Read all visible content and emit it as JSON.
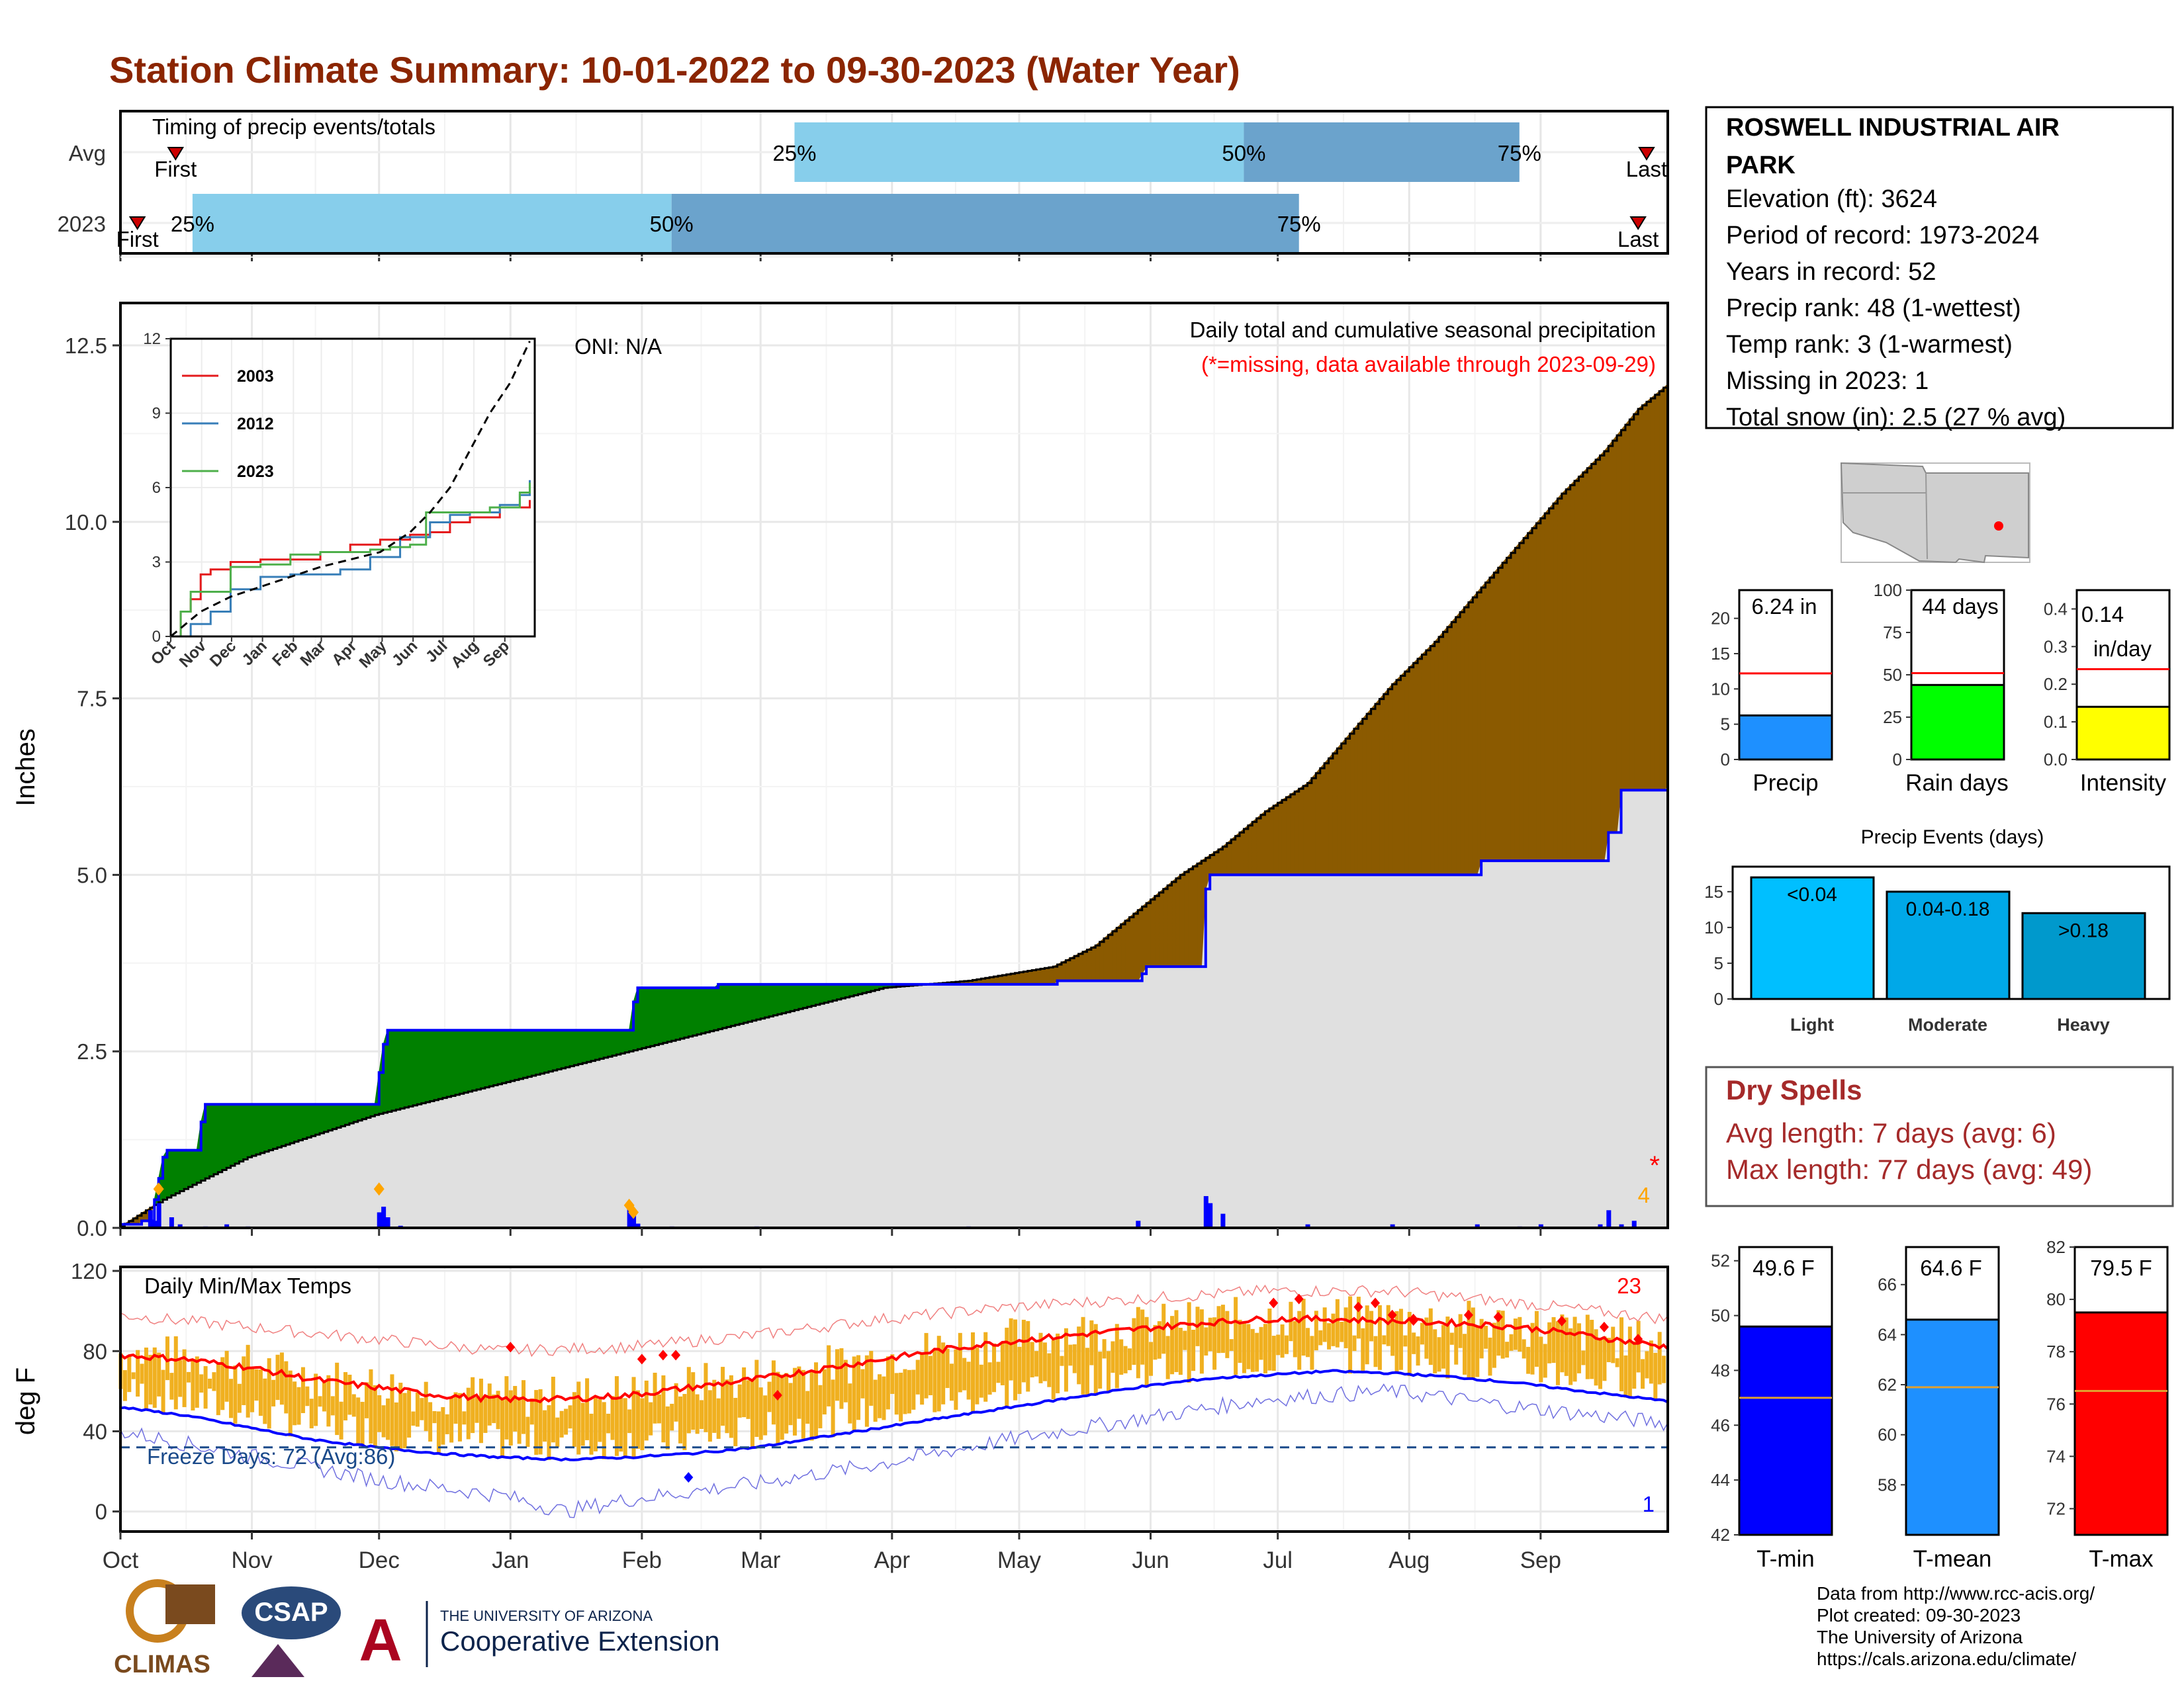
{
  "page_title": "Station Climate Summary: 10-01-2022 to 09-30-2023 (Water Year)",
  "colors": {
    "title": "#8B2500",
    "light_blue": "#87CEEB",
    "mid_blue": "#6BA3CC",
    "green_area": "#008000",
    "brown_area": "#8B5A00",
    "grey_area": "#E0E0E0",
    "dry_spell_red": "#A52A2A",
    "missing_red": "#FF0000",
    "tmax_red": "#FF0000",
    "tmin_blue": "#0000FF",
    "tmean_blue": "#1E90FF",
    "temp_orange": "#F0B020",
    "rain_green": "#00FF00",
    "intensity_yellow": "#FFFF00"
  },
  "timing_panel": {
    "title": "Timing of precip events/totals",
    "rows": [
      "Avg",
      "2023"
    ],
    "avg_labels": {
      "first": "First",
      "last": "Last",
      "p25": "25%",
      "p50": "50%",
      "p75": "75%"
    },
    "yr_labels": {
      "first": "First",
      "last": "Last",
      "p25": "25%",
      "p50": "50%",
      "p75": "75%"
    }
  },
  "precip_panel": {
    "title": "Daily total and cumulative seasonal precipitation",
    "missing_note": "(*=missing, data available through 2023-09-29)",
    "oni": "ONI: N/A",
    "ylabel": "Inches",
    "missing_count": "4",
    "missing_star": "*"
  },
  "months": [
    "Oct",
    "Nov",
    "Dec",
    "Jan",
    "Feb",
    "Mar",
    "Apr",
    "May",
    "Jun",
    "Jul",
    "Aug",
    "Sep"
  ],
  "inset_months": [
    "Oct",
    "Nov",
    "Dec",
    "Jan",
    "Feb",
    "Mar",
    "Apr",
    "May",
    "Jun",
    "Jul",
    "Aug",
    "Sep"
  ],
  "temp_panel": {
    "title": "Daily Min/Max Temps",
    "ylabel": "deg F",
    "freeze": "Freeze Days: 72 (Avg:86)",
    "max_count": "23",
    "min_count": "1"
  },
  "station": {
    "name_line1": "ROSWELL INDUSTRIAL AIR",
    "name_line2": "PARK",
    "elevation": "Elevation (ft): 3624",
    "period": "Period of record: 1973-2024",
    "years": "Years in record: 52",
    "precip_rank": "Precip rank: 48 (1-wettest)",
    "temp_rank": "Temp rank: 3 (1-warmest)",
    "missing": "Missing in 2023: 1",
    "snow": "Total snow (in): 2.5 (27 % avg)"
  },
  "mini_bars": {
    "precip": {
      "label": "Precip",
      "value_text": "6.24 in"
    },
    "rain_days": {
      "label": "Rain days",
      "value_text": "44 days"
    },
    "intensity": {
      "label": "Intensity",
      "value_text_1": "0.14",
      "value_text_2": "in/day"
    }
  },
  "events": {
    "title": "Precip Events (days)",
    "categories": [
      "Light",
      "Moderate",
      "Heavy"
    ],
    "bar_labels": [
      "<0.04",
      "0.04-0.18",
      ">0.18"
    ]
  },
  "dry_spells": {
    "title": "Dry Spells",
    "avg": "Avg length: 7 days (avg: 6)",
    "max": "Max length: 77 days (avg: 49)"
  },
  "temp_bars": {
    "tmin": {
      "label": "T-min",
      "value_text": "49.6 F"
    },
    "tmean": {
      "label": "T-mean",
      "value_text": "64.6 F"
    },
    "tmax": {
      "label": "T-max",
      "value_text": "79.5 F"
    }
  },
  "footer": {
    "line1": "Data from http://www.rcc-acis.org/",
    "line2": "Plot created: 09-30-2023",
    "line3": "The University of Arizona",
    "line4": "https://cals.arizona.edu/climate/"
  },
  "logos": {
    "climas": "CLIMAS",
    "csap": "CSAP",
    "ua_line1": "THE UNIVERSITY OF ARIZONA",
    "ua_line2": "Cooperative Extension"
  },
  "chart_data": [
    {
      "name": "timing",
      "type": "bar",
      "rows": [
        "Avg",
        "2023"
      ],
      "x_domain_days": [
        0,
        365
      ],
      "avg": {
        "first": 13,
        "p25": 159,
        "p50": 265,
        "p75": 330,
        "last": 360
      },
      "y2023": {
        "first": 4,
        "p25": 17,
        "p50": 130,
        "p75": 278,
        "last": 358
      }
    },
    {
      "name": "cumulative_precip",
      "type": "area",
      "ylim": [
        0,
        13.1
      ],
      "yticks": [
        0.0,
        2.5,
        5.0,
        7.5,
        10.0,
        12.5
      ],
      "observed_2023": [
        [
          0,
          0.05
        ],
        [
          5,
          0.1
        ],
        [
          8,
          0.4
        ],
        [
          9,
          0.7
        ],
        [
          10,
          1.0
        ],
        [
          11,
          1.1
        ],
        [
          18,
          1.1
        ],
        [
          19,
          1.5
        ],
        [
          20,
          1.75
        ],
        [
          60,
          1.75
        ],
        [
          61,
          2.2
        ],
        [
          62,
          2.6
        ],
        [
          63,
          2.8
        ],
        [
          120,
          2.8
        ],
        [
          121,
          3.2
        ],
        [
          122,
          3.4
        ],
        [
          140,
          3.4
        ],
        [
          141,
          3.45
        ],
        [
          220,
          3.45
        ],
        [
          221,
          3.5
        ],
        [
          240,
          3.5
        ],
        [
          241,
          3.6
        ],
        [
          242,
          3.7
        ],
        [
          255,
          3.7
        ],
        [
          256,
          4.8
        ],
        [
          257,
          5.0
        ],
        [
          320,
          5.0
        ],
        [
          321,
          5.2
        ],
        [
          350,
          5.2
        ],
        [
          351,
          5.6
        ],
        [
          354,
          6.2
        ],
        [
          365,
          6.25
        ]
      ],
      "average": [
        [
          0,
          0.02
        ],
        [
          10,
          0.4
        ],
        [
          20,
          0.7
        ],
        [
          30,
          1.0
        ],
        [
          40,
          1.2
        ],
        [
          50,
          1.4
        ],
        [
          60,
          1.6
        ],
        [
          80,
          1.9
        ],
        [
          100,
          2.2
        ],
        [
          120,
          2.5
        ],
        [
          140,
          2.8
        ],
        [
          160,
          3.1
        ],
        [
          180,
          3.4
        ],
        [
          200,
          3.5
        ],
        [
          210,
          3.6
        ],
        [
          220,
          3.7
        ],
        [
          230,
          4.0
        ],
        [
          240,
          4.5
        ],
        [
          250,
          5.0
        ],
        [
          260,
          5.4
        ],
        [
          270,
          5.9
        ],
        [
          280,
          6.3
        ],
        [
          290,
          7.0
        ],
        [
          300,
          7.7
        ],
        [
          310,
          8.3
        ],
        [
          320,
          9.0
        ],
        [
          330,
          9.7
        ],
        [
          340,
          10.4
        ],
        [
          350,
          11.0
        ],
        [
          358,
          11.6
        ],
        [
          365,
          11.95
        ]
      ],
      "daily_totals": [
        [
          7,
          0.25
        ],
        [
          8,
          0.1
        ],
        [
          9,
          0.35
        ],
        [
          12,
          0.15
        ],
        [
          14,
          0.05
        ],
        [
          20,
          0.02
        ],
        [
          25,
          0.05
        ],
        [
          30,
          0.02
        ],
        [
          61,
          0.22
        ],
        [
          62,
          0.3
        ],
        [
          63,
          0.15
        ],
        [
          66,
          0.03
        ],
        [
          120,
          0.28
        ],
        [
          121,
          0.2
        ],
        [
          122,
          0.06
        ],
        [
          130,
          0.02
        ],
        [
          150,
          0.02
        ],
        [
          200,
          0.02
        ],
        [
          240,
          0.1
        ],
        [
          256,
          0.45
        ],
        [
          257,
          0.35
        ],
        [
          260,
          0.2
        ],
        [
          280,
          0.05
        ],
        [
          300,
          0.05
        ],
        [
          320,
          0.05
        ],
        [
          330,
          0.02
        ],
        [
          335,
          0.05
        ],
        [
          349,
          0.05
        ],
        [
          351,
          0.25
        ],
        [
          354,
          0.05
        ],
        [
          357,
          0.1
        ]
      ],
      "missing_days": [
        364
      ]
    },
    {
      "name": "inset_cumulative",
      "type": "line",
      "ylim": [
        0,
        12
      ],
      "yticks": [
        0,
        3,
        6,
        9,
        12
      ],
      "series": [
        {
          "name": "2003",
          "points": [
            [
              0,
              0
            ],
            [
              10,
              1.0
            ],
            [
              20,
              1.5
            ],
            [
              30,
              2.5
            ],
            [
              40,
              2.7
            ],
            [
              60,
              3.0
            ],
            [
              90,
              3.1
            ],
            [
              150,
              3.4
            ],
            [
              180,
              3.7
            ],
            [
              210,
              3.9
            ],
            [
              240,
              4.1
            ],
            [
              260,
              4.2
            ],
            [
              280,
              4.6
            ],
            [
              300,
              4.8
            ],
            [
              330,
              5.2
            ],
            [
              360,
              5.5
            ]
          ]
        },
        {
          "name": "2012",
          "points": [
            [
              0,
              0
            ],
            [
              20,
              0.5
            ],
            [
              40,
              1.0
            ],
            [
              60,
              1.9
            ],
            [
              90,
              2.4
            ],
            [
              120,
              2.5
            ],
            [
              150,
              2.5
            ],
            [
              170,
              2.7
            ],
            [
              190,
              2.7
            ],
            [
              200,
              3.2
            ],
            [
              230,
              4.0
            ],
            [
              260,
              4.6
            ],
            [
              280,
              4.9
            ],
            [
              300,
              5.0
            ],
            [
              330,
              5.3
            ],
            [
              350,
              5.7
            ],
            [
              360,
              6.3
            ]
          ]
        },
        {
          "name": "2023",
          "points": [
            [
              0,
              0
            ],
            [
              10,
              1.0
            ],
            [
              20,
              1.8
            ],
            [
              60,
              2.8
            ],
            [
              90,
              2.9
            ],
            [
              120,
              3.3
            ],
            [
              150,
              3.4
            ],
            [
              200,
              3.5
            ],
            [
              220,
              3.6
            ],
            [
              240,
              3.7
            ],
            [
              256,
              5.0
            ],
            [
              320,
              5.2
            ],
            [
              350,
              5.8
            ],
            [
              360,
              6.2
            ]
          ]
        }
      ],
      "average": [
        [
          0,
          0
        ],
        [
          30,
          1.0
        ],
        [
          60,
          1.6
        ],
        [
          90,
          2.0
        ],
        [
          120,
          2.4
        ],
        [
          150,
          2.8
        ],
        [
          180,
          3.1
        ],
        [
          210,
          3.4
        ],
        [
          240,
          4.2
        ],
        [
          260,
          5.0
        ],
        [
          280,
          6.0
        ],
        [
          300,
          7.5
        ],
        [
          320,
          9.0
        ],
        [
          340,
          10.2
        ],
        [
          360,
          11.9
        ]
      ]
    },
    {
      "name": "daily_temps",
      "type": "line",
      "ylim": [
        -10,
        122
      ],
      "yticks": [
        0,
        40,
        80,
        120
      ],
      "avg_max": [
        [
          0,
          78
        ],
        [
          15,
          76
        ],
        [
          30,
          72
        ],
        [
          45,
          66
        ],
        [
          60,
          62
        ],
        [
          75,
          58
        ],
        [
          90,
          56
        ],
        [
          105,
          56
        ],
        [
          120,
          58
        ],
        [
          135,
          62
        ],
        [
          150,
          66
        ],
        [
          165,
          71
        ],
        [
          180,
          76
        ],
        [
          195,
          81
        ],
        [
          210,
          85
        ],
        [
          225,
          88
        ],
        [
          240,
          91
        ],
        [
          255,
          94
        ],
        [
          270,
          96
        ],
        [
          285,
          96
        ],
        [
          300,
          95
        ],
        [
          315,
          94
        ],
        [
          330,
          92
        ],
        [
          345,
          88
        ],
        [
          365,
          82
        ]
      ],
      "avg_min": [
        [
          0,
          52
        ],
        [
          15,
          48
        ],
        [
          30,
          42
        ],
        [
          45,
          36
        ],
        [
          60,
          32
        ],
        [
          75,
          29
        ],
        [
          90,
          27
        ],
        [
          105,
          26
        ],
        [
          120,
          27
        ],
        [
          135,
          29
        ],
        [
          150,
          32
        ],
        [
          165,
          37
        ],
        [
          180,
          42
        ],
        [
          195,
          47
        ],
        [
          210,
          52
        ],
        [
          225,
          57
        ],
        [
          240,
          62
        ],
        [
          255,
          66
        ],
        [
          270,
          68
        ],
        [
          285,
          70
        ],
        [
          300,
          69
        ],
        [
          315,
          67
        ],
        [
          330,
          64
        ],
        [
          345,
          60
        ],
        [
          365,
          55
        ]
      ],
      "rec_max": [
        [
          0,
          98
        ],
        [
          30,
          92
        ],
        [
          60,
          86
        ],
        [
          90,
          80
        ],
        [
          120,
          82
        ],
        [
          150,
          88
        ],
        [
          180,
          96
        ],
        [
          210,
          102
        ],
        [
          240,
          106
        ],
        [
          270,
          110
        ],
        [
          300,
          110
        ],
        [
          330,
          104
        ],
        [
          365,
          96
        ]
      ],
      "rec_min": [
        [
          0,
          40
        ],
        [
          30,
          28
        ],
        [
          60,
          16
        ],
        [
          90,
          8
        ],
        [
          105,
          0
        ],
        [
          120,
          6
        ],
        [
          150,
          14
        ],
        [
          180,
          24
        ],
        [
          210,
          36
        ],
        [
          240,
          46
        ],
        [
          270,
          56
        ],
        [
          300,
          60
        ],
        [
          330,
          52
        ],
        [
          365,
          44
        ]
      ],
      "freeze_line": 32
    },
    {
      "name": "precip_mini",
      "type": "bar",
      "ylim": [
        0,
        24
      ],
      "yticks": [
        0,
        5,
        10,
        15,
        20
      ],
      "avg": 12.2,
      "value": 6.24
    },
    {
      "name": "rain_days_mini",
      "type": "bar",
      "ylim": [
        0,
        100
      ],
      "yticks": [
        0,
        25,
        50,
        75,
        100
      ],
      "avg": 51,
      "value": 44
    },
    {
      "name": "intensity_mini",
      "type": "bar",
      "ylim": [
        0,
        0.45
      ],
      "yticks": [
        0.0,
        0.1,
        0.2,
        0.3,
        0.4
      ],
      "avg": 0.24,
      "value": 0.14
    },
    {
      "name": "precip_events",
      "type": "bar",
      "categories": [
        "Light",
        "Moderate",
        "Heavy"
      ],
      "values": [
        17,
        15,
        12
      ],
      "ylim": [
        0,
        18.5
      ],
      "yticks": [
        0,
        5,
        10,
        15
      ]
    },
    {
      "name": "tmin_bar",
      "type": "bar",
      "ylim": [
        42,
        52.5
      ],
      "yticks": [
        42,
        44,
        46,
        48,
        50,
        52
      ],
      "value": 49.6,
      "avg": 47.0
    },
    {
      "name": "tmean_bar",
      "type": "bar",
      "ylim": [
        56,
        67.5
      ],
      "yticks": [
        58,
        60,
        62,
        64,
        66
      ],
      "value": 64.6,
      "avg": 61.9
    },
    {
      "name": "tmax_bar",
      "type": "bar",
      "ylim": [
        71,
        82
      ],
      "yticks": [
        72,
        74,
        76,
        78,
        80,
        82
      ],
      "value": 79.5,
      "avg": 76.5
    }
  ]
}
